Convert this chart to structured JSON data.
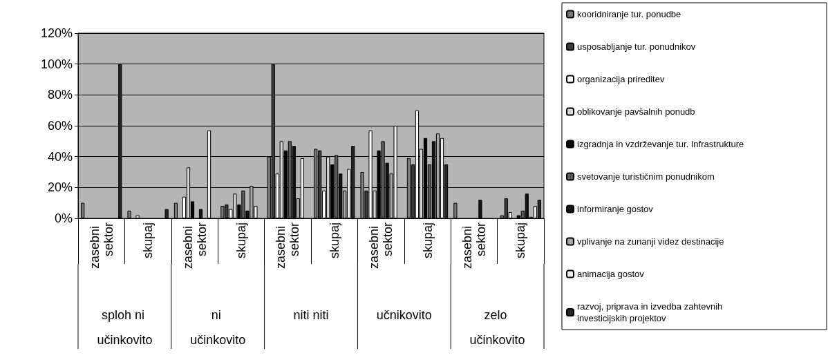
{
  "chart_data": {
    "type": "bar",
    "categories": [
      "zasebni sektor",
      "skupaj",
      "zasebni sektor",
      "skupaj",
      "zasebni sektor",
      "skupaj",
      "zasebni sektor",
      "skupaj",
      "zasebni sektor",
      "skupaj"
    ],
    "annotations": [
      "sploh ni učinkovito",
      "ni učinkovito",
      "niti niti",
      "učnikovito",
      "zelo učinkovito"
    ],
    "series": [
      {
        "name": "kooridniranje tur. ponudbe",
        "color": "#7a7a7a",
        "values": [
          10,
          5,
          10,
          8,
          40,
          45,
          30,
          39,
          10,
          2
        ]
      },
      {
        "name": "usposabljanje tur. ponudnikov",
        "color": "#3c3c3c",
        "values": [
          0,
          0,
          0,
          9,
          100,
          44,
          18,
          35,
          0,
          13
        ]
      },
      {
        "name": "organizacija prireditev",
        "color": "#ffffff",
        "values": [
          0,
          2,
          14,
          6,
          29,
          18,
          57,
          70,
          0,
          4
        ]
      },
      {
        "name": "oblikovanje pavšalnih ponudb",
        "color": "#d6d6d6",
        "values": [
          0,
          0,
          33,
          16,
          50,
          40,
          18,
          45,
          0,
          0
        ]
      },
      {
        "name": "izgradnja in vzdrževanje tur. Infrastrukture",
        "color": "#000000",
        "values": [
          0,
          0,
          11,
          9,
          44,
          35,
          44,
          52,
          0,
          2
        ]
      },
      {
        "name": "svetovanje turističnim ponudnikom",
        "color": "#5c5c5c",
        "values": [
          0,
          0,
          0,
          18,
          50,
          41,
          50,
          35,
          0,
          5
        ]
      },
      {
        "name": "informiranje gostov",
        "color": "#141414",
        "values": [
          0,
          0,
          6,
          5,
          47,
          29,
          36,
          50,
          12,
          16
        ]
      },
      {
        "name": "vplivanje na zunanji videz destinacije",
        "color": "#a8a8a8",
        "values": [
          0,
          0,
          0,
          21,
          13,
          18,
          29,
          55,
          0,
          1
        ]
      },
      {
        "name": "animacija gostov",
        "color": "#efefef",
        "values": [
          0,
          0,
          57,
          8,
          39,
          32,
          60,
          52,
          0,
          8
        ]
      },
      {
        "name": "razvoj, priprava in izvedba zahtevnih investicijskih projektov",
        "color": "#262626",
        "values": [
          100,
          6,
          0,
          0,
          0,
          47,
          0,
          35,
          0,
          12
        ]
      }
    ],
    "ylim": [
      0,
      120
    ],
    "yticks": [
      {
        "value": 0,
        "label": "0%"
      },
      {
        "value": 20,
        "label": "20%"
      },
      {
        "value": 40,
        "label": "40%"
      },
      {
        "value": 60,
        "label": "60%"
      },
      {
        "value": 80,
        "label": "80%"
      },
      {
        "value": 100,
        "label": "100%"
      },
      {
        "value": 120,
        "label": "120%"
      }
    ],
    "grid": "y",
    "legend": "right"
  }
}
